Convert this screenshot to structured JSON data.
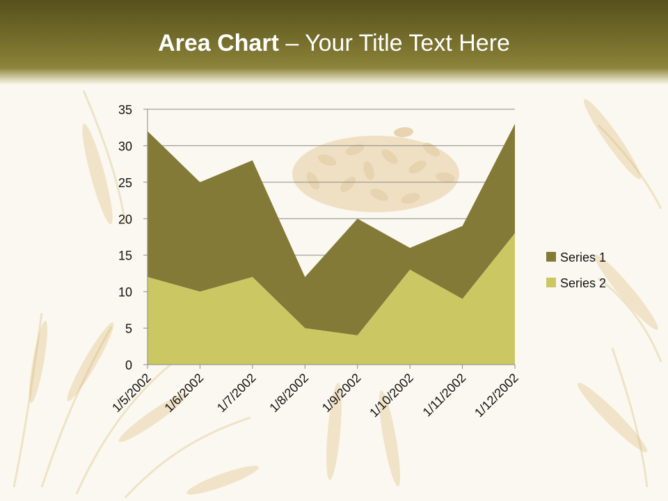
{
  "slide": {
    "title_bold": "Area Chart",
    "title_rest": " – Your Title Text Here"
  },
  "colors": {
    "header": "#6f6728",
    "series1": "#837a38",
    "series2": "#cbc864",
    "background": "#faf8f0"
  },
  "chart_data": {
    "type": "area",
    "stacked": true,
    "categories": [
      "1/5/2002",
      "1/6/2002",
      "1/7/2002",
      "1/8/2002",
      "1/9/2002",
      "1/10/2002",
      "1/11/2002",
      "1/12/2002"
    ],
    "series": [
      {
        "name": "Series 1",
        "values": [
          20,
          15,
          16,
          7,
          16,
          3,
          10,
          15
        ],
        "color": "#837a38"
      },
      {
        "name": "Series 2",
        "values": [
          12,
          10,
          12,
          5,
          4,
          13,
          9,
          18
        ],
        "color": "#cbc864"
      }
    ],
    "ylim": [
      0,
      35
    ],
    "yticks": [
      0,
      5,
      10,
      15,
      20,
      25,
      30,
      35
    ],
    "grid": true,
    "legend": "right",
    "xlabel": "",
    "ylabel": ""
  }
}
